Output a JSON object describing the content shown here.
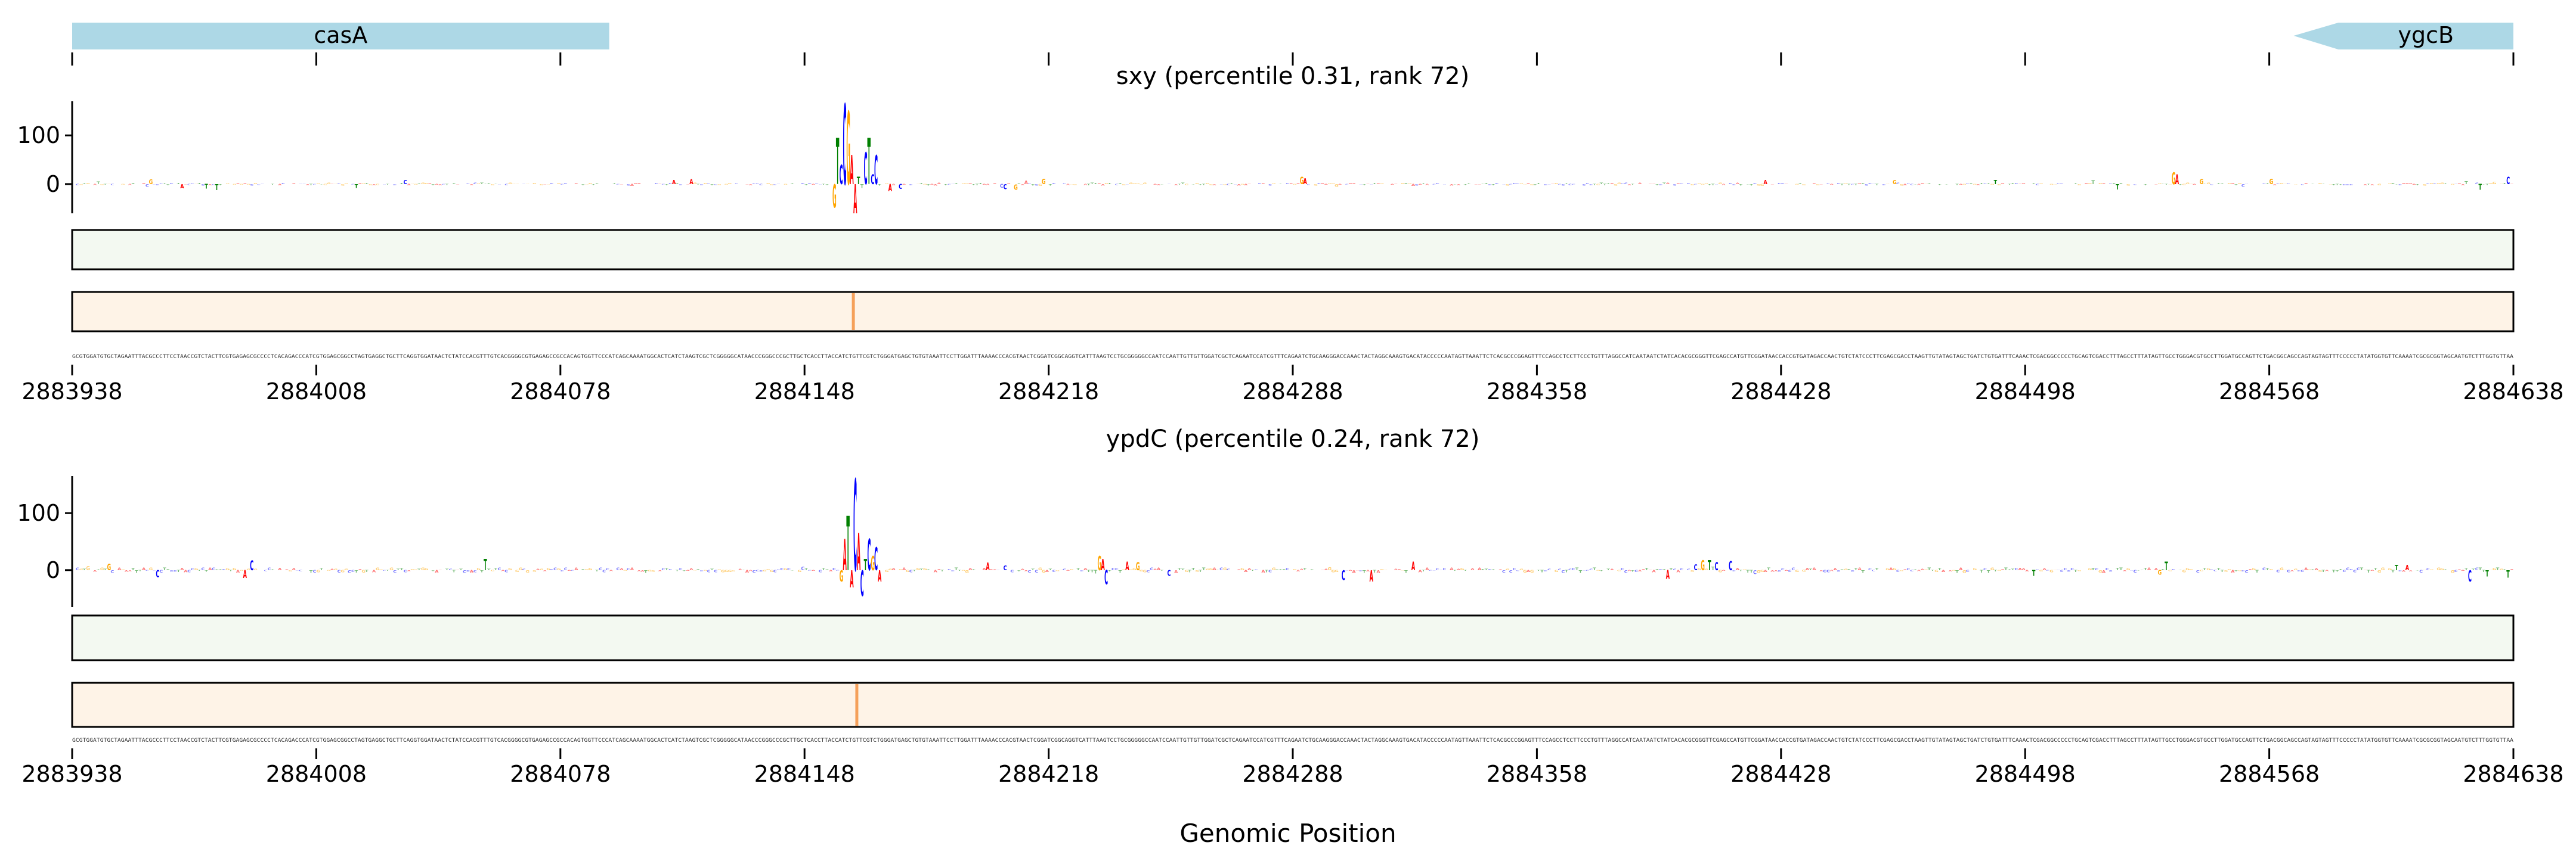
{
  "chart_data": {
    "type": "sequence-logo",
    "xlabel": "Genomic Position",
    "xlim": [
      2883938,
      2884638
    ],
    "xticks": [
      "2883938",
      "2884008",
      "2884078",
      "2884148",
      "2884218",
      "2884288",
      "2884358",
      "2884428",
      "2884498",
      "2884568",
      "2884638"
    ],
    "genes": [
      {
        "name": "casA",
        "start": 2883938,
        "end": 2884092,
        "strand": "+"
      },
      {
        "name": "ygcB",
        "start": 2884575,
        "end": 2884638,
        "strand": "-"
      }
    ],
    "base_colors": {
      "A": "#ff0000",
      "C": "#0000ff",
      "G": "#ffa500",
      "T": "#008000"
    },
    "track_colors": {
      "green": "#f3f9f1",
      "orange": "#fef3e7",
      "highlight": "#f5a05a"
    },
    "panels": [
      {
        "title": "sxy (percentile 0.31, rank 72)",
        "yticks": [
          "0",
          "100"
        ],
        "ylim": [
          -60,
          170
        ],
        "highlight_position": 2884162,
        "peaks": [
          [
            2884156,
            "G",
            -48
          ],
          [
            2884157,
            "T",
            95
          ],
          [
            2884158,
            "C",
            40
          ],
          [
            2884159,
            "C",
            165
          ],
          [
            2884160,
            "G",
            150
          ],
          [
            2884161,
            "A",
            60
          ],
          [
            2884162,
            "A",
            -60
          ],
          [
            2884163,
            "T",
            15
          ],
          [
            2884164,
            "T",
            -8
          ],
          [
            2884165,
            "C",
            65
          ],
          [
            2884166,
            "T",
            95
          ],
          [
            2884167,
            "C",
            20
          ],
          [
            2884168,
            "C",
            60
          ],
          [
            2884172,
            "A",
            -15
          ],
          [
            2884175,
            "C",
            -10
          ],
          [
            2884115,
            "A",
            10
          ],
          [
            2884290,
            "G",
            15
          ],
          [
            2884291,
            "A",
            12
          ],
          [
            2884540,
            "G",
            25
          ],
          [
            2884541,
            "A",
            20
          ],
          [
            2884636,
            "C",
            15
          ]
        ]
      },
      {
        "title": "ypdC (percentile 0.24, rank 72)",
        "yticks": [
          "0",
          "100"
        ],
        "ylim": [
          -65,
          165
        ],
        "highlight_position": 2884163,
        "peaks": [
          [
            2884158,
            "G",
            -20
          ],
          [
            2884159,
            "A",
            55
          ],
          [
            2884160,
            "T",
            95
          ],
          [
            2884161,
            "A",
            -30
          ],
          [
            2884162,
            "C",
            160
          ],
          [
            2884163,
            "A",
            65
          ],
          [
            2884164,
            "C",
            -45
          ],
          [
            2884165,
            "T",
            20
          ],
          [
            2884166,
            "C",
            55
          ],
          [
            2884167,
            "G",
            25
          ],
          [
            2884168,
            "C",
            40
          ],
          [
            2884169,
            "A",
            -20
          ],
          [
            2884232,
            "G",
            25
          ],
          [
            2884233,
            "A",
            20
          ],
          [
            2884234,
            "C",
            -25
          ],
          [
            2884240,
            "A",
            15
          ],
          [
            2884310,
            "A",
            -20
          ],
          [
            2884625,
            "C",
            -20
          ]
        ]
      }
    ]
  }
}
